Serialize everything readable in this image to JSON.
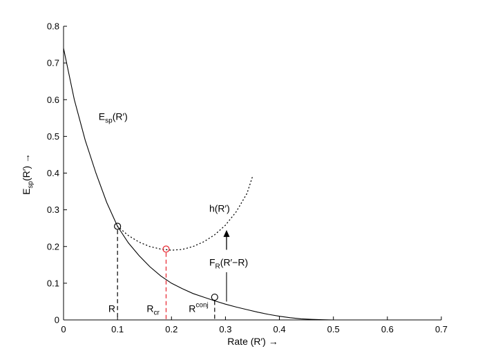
{
  "chart_data": {
    "type": "line",
    "title": "",
    "xlabel": "Rate (R′) →",
    "ylabel_main": "E",
    "ylabel_sub": "sp",
    "ylabel_tail": "(R′) →",
    "xlim": [
      0,
      0.7
    ],
    "ylim": [
      0,
      0.8
    ],
    "x_ticks": [
      "0",
      "0.1",
      "0.2",
      "0.3",
      "0.4",
      "0.5",
      "0.6",
      "0.7"
    ],
    "y_ticks": [
      "0",
      "0.1",
      "0.2",
      "0.3",
      "0.4",
      "0.5",
      "0.6",
      "0.7",
      "0.8"
    ],
    "x_tick_values": [
      0,
      0.1,
      0.2,
      0.3,
      0.4,
      0.5,
      0.6,
      0.7
    ],
    "y_tick_values": [
      0,
      0.1,
      0.2,
      0.3,
      0.4,
      0.5,
      0.6,
      0.7,
      0.8
    ],
    "grid": false,
    "series": [
      {
        "style": "solid",
        "color": "#000000",
        "x": [
          0,
          0.02,
          0.04,
          0.06,
          0.08,
          0.1,
          0.12,
          0.14,
          0.16,
          0.18,
          0.2,
          0.22,
          0.24,
          0.26,
          0.28,
          0.3,
          0.32,
          0.34,
          0.36,
          0.38,
          0.4,
          0.42,
          0.44,
          0.46,
          0.48,
          0.5
        ],
        "y": [
          0.74,
          0.6,
          0.49,
          0.4,
          0.32,
          0.255,
          0.21,
          0.175,
          0.145,
          0.12,
          0.1,
          0.085,
          0.072,
          0.062,
          0.052,
          0.043,
          0.035,
          0.028,
          0.021,
          0.015,
          0.01,
          0.006,
          0.003,
          0.0015,
          0.0005,
          0
        ]
      },
      {
        "style": "dotted",
        "color": "#000000",
        "x": [
          0.1,
          0.12,
          0.14,
          0.16,
          0.18,
          0.2,
          0.22,
          0.24,
          0.26,
          0.28,
          0.3,
          0.32,
          0.34,
          0.35
        ],
        "y": [
          0.255,
          0.23,
          0.212,
          0.2,
          0.193,
          0.19,
          0.192,
          0.2,
          0.213,
          0.232,
          0.258,
          0.295,
          0.345,
          0.39
        ]
      }
    ],
    "markers": [
      {
        "x": 0.1,
        "y": 0.255,
        "color": "#000000"
      },
      {
        "x": 0.19,
        "y": 0.193,
        "color": "#e8202a"
      },
      {
        "x": 0.28,
        "y": 0.062,
        "color": "#000000"
      }
    ],
    "dashed_lines": [
      {
        "x": 0.1,
        "y_top": 0.245,
        "color": "#000000"
      },
      {
        "x": 0.19,
        "y_top": 0.183,
        "color": "#e8202a"
      },
      {
        "x": 0.28,
        "y_top": 0.052,
        "color": "#000000"
      }
    ],
    "solid_vline": {
      "x": 0.302,
      "y_bottom": 0.05,
      "y_top": 0.13
    },
    "arrow": {
      "x_from": 0.302,
      "y_from": 0.225,
      "x_to": 0.302,
      "y_to": 0.245
    },
    "annotations": {
      "esp_curve": {
        "main": "E",
        "sub": "sp",
        "tail": "(R′)",
        "x": 0.065,
        "y": 0.545
      },
      "h_curve": {
        "text": "h(R′)",
        "x": 0.27,
        "y": 0.295
      },
      "fr": {
        "main": "F",
        "sub": "R",
        "tail": "(R′−R)",
        "x": 0.27,
        "y": 0.148
      },
      "r": {
        "text": "R",
        "x": 0.083,
        "y": 0.022
      },
      "rcr": {
        "main": "R",
        "sub": "cr",
        "x": 0.154,
        "y": 0.022
      },
      "rconj": {
        "main": "R",
        "sup": "conj",
        "x": 0.232,
        "y": 0.022
      }
    }
  }
}
